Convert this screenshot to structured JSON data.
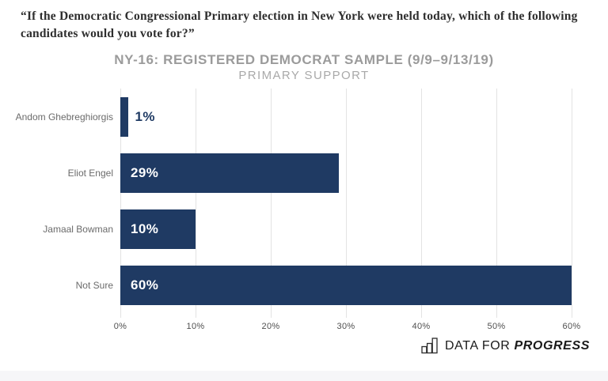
{
  "question": "“If the Democratic Congressional Primary election in New York were held today, which of the following candidates would you vote for?”",
  "chart_data": {
    "type": "bar",
    "orientation": "horizontal",
    "title": "NY-16: REGISTERED DEMOCRAT SAMPLE (9/9–9/13/19)",
    "subtitle": "PRIMARY SUPPORT",
    "categories": [
      "Andom Ghebreghiorgis",
      "Eliot Engel",
      "Jamaal Bowman",
      "Not Sure"
    ],
    "values": [
      1,
      29,
      10,
      60
    ],
    "value_labels": [
      "1%",
      "29%",
      "10%",
      "60%"
    ],
    "xlim": [
      0,
      60
    ],
    "x_ticks": [
      "0%",
      "10%",
      "20%",
      "30%",
      "40%",
      "50%",
      "60%"
    ],
    "grid": true,
    "legend": "none",
    "bar_color": "#1f3a63",
    "value_label_inside_color": "#ffffff",
    "gridline_color": "#e3e3e3"
  },
  "footer": {
    "brand_prefix": "DATA FOR",
    "brand_suffix": "PROGRESS",
    "logo_icon": "bar-chart-icon"
  }
}
